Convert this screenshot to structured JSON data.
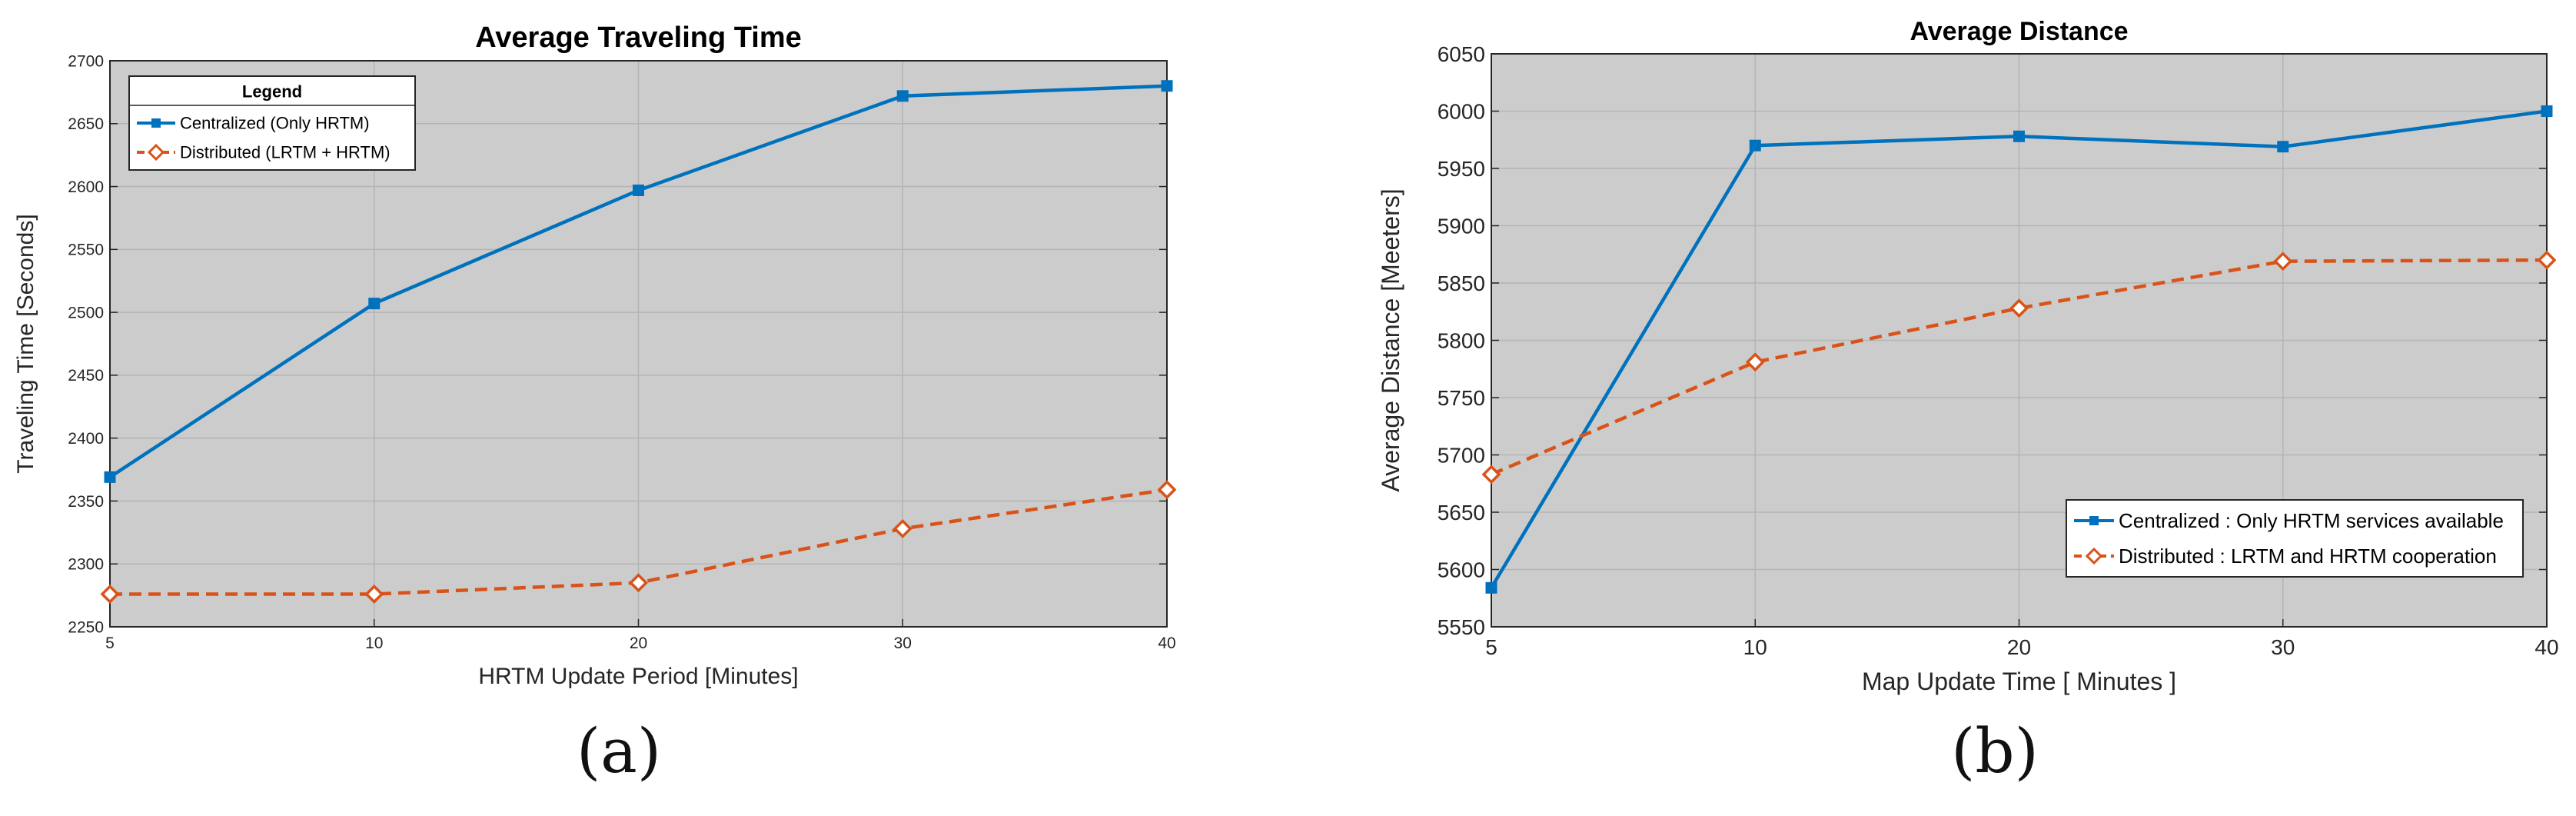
{
  "chart_data": [
    {
      "type": "line",
      "title": "Average Traveling Time",
      "xlabel": "HRTM Update Period [Minutes]",
      "ylabel": "Traveling Time [Seconds]",
      "x": [
        5,
        10,
        20,
        30,
        40
      ],
      "x_tick_labels": [
        "5",
        "10",
        "20",
        "30",
        "40"
      ],
      "x_scale": "categorical-evenly-spaced",
      "ylim": [
        2250,
        2700
      ],
      "y_ticks": [
        2250,
        2300,
        2350,
        2400,
        2450,
        2500,
        2550,
        2600,
        2650,
        2700
      ],
      "y_tick_labels": [
        "2250",
        "2300",
        "2350",
        "2400",
        "2450",
        "2500",
        "2550",
        "2600",
        "2650",
        "2700"
      ],
      "grid": true,
      "legend": {
        "title": "Legend",
        "placement": "top-left"
      },
      "series": [
        {
          "name": "Centralized (Only HRTM)",
          "values": [
            2369,
            2507,
            2597,
            2672,
            2680
          ],
          "color": "#0072BD",
          "style": "solid",
          "marker": "square"
        },
        {
          "name": "Distributed (LRTM + HRTM)",
          "values": [
            2276,
            2276,
            2285,
            2328,
            2359
          ],
          "color": "#D95319",
          "style": "dashed",
          "marker": "diamond"
        }
      ],
      "panel_label": "(a)"
    },
    {
      "type": "line",
      "title": "Average Distance",
      "xlabel": "Map Update Time [ Minutes ]",
      "ylabel": "Average Distance [Meeters]",
      "x": [
        5,
        10,
        20,
        30,
        40
      ],
      "x_tick_labels": [
        "5",
        "10",
        "20",
        "30",
        "40"
      ],
      "x_scale": "categorical-evenly-spaced",
      "ylim": [
        5550,
        6050
      ],
      "y_ticks": [
        5550,
        5600,
        5650,
        5700,
        5750,
        5800,
        5850,
        5900,
        5950,
        6000,
        6050
      ],
      "y_tick_labels": [
        "5550",
        "5600",
        "5650",
        "5700",
        "5750",
        "5800",
        "5850",
        "5900",
        "5950",
        "6000",
        "6050"
      ],
      "grid": true,
      "legend": {
        "title": "",
        "placement": "bottom-right"
      },
      "series": [
        {
          "name": "Centralized : Only HRTM services available",
          "values": [
            5584,
            5970,
            5978,
            5969,
            6000
          ],
          "color": "#0072BD",
          "style": "solid",
          "marker": "square"
        },
        {
          "name": "Distributed : LRTM and HRTM cooperation",
          "values": [
            5683,
            5781,
            5828,
            5869,
            5870
          ],
          "color": "#D95319",
          "style": "dashed",
          "marker": "diamond"
        }
      ],
      "panel_label": "(b)"
    }
  ]
}
